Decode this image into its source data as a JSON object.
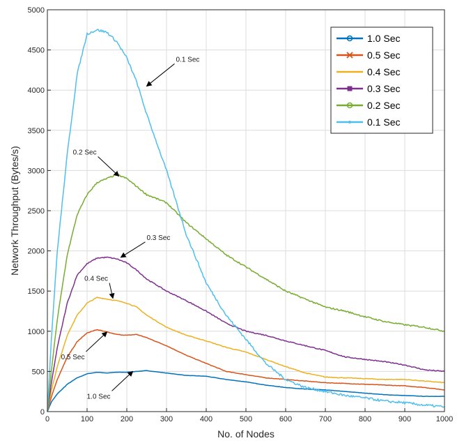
{
  "chart_data": {
    "type": "line",
    "xlabel": "No. of Nodes",
    "ylabel": "Network Throughput (Bytes/s)",
    "xlim": [
      0,
      1000
    ],
    "ylim": [
      0,
      5000
    ],
    "xticks": [
      0,
      100,
      200,
      300,
      400,
      500,
      600,
      700,
      800,
      900,
      1000
    ],
    "yticks": [
      0,
      500,
      1000,
      1500,
      2000,
      2500,
      3000,
      3500,
      4000,
      4500,
      5000
    ],
    "grid": true,
    "legend_position": "top-right",
    "x": [
      0,
      10,
      25,
      50,
      75,
      100,
      125,
      150,
      175,
      200,
      225,
      250,
      300,
      350,
      400,
      450,
      500,
      550,
      600,
      650,
      700,
      750,
      800,
      850,
      900,
      950,
      1000
    ],
    "series": [
      {
        "name": "1.0 Sec",
        "color": "#0072bd",
        "marker": "circle",
        "values": [
          0,
          120,
          220,
          340,
          420,
          470,
          490,
          480,
          490,
          490,
          500,
          510,
          480,
          450,
          440,
          400,
          370,
          330,
          300,
          280,
          270,
          250,
          230,
          210,
          200,
          190,
          190
        ]
      },
      {
        "name": "0.5 Sec",
        "color": "#d95319",
        "marker": "x",
        "values": [
          0,
          180,
          400,
          680,
          870,
          980,
          1020,
          990,
          960,
          950,
          960,
          920,
          820,
          700,
          600,
          500,
          460,
          420,
          400,
          380,
          360,
          350,
          340,
          330,
          320,
          300,
          270
        ]
      },
      {
        "name": "0.4 Sec",
        "color": "#edb120",
        "marker": "none",
        "values": [
          0,
          260,
          560,
          950,
          1200,
          1350,
          1420,
          1400,
          1380,
          1350,
          1300,
          1200,
          1050,
          950,
          880,
          800,
          740,
          650,
          560,
          480,
          430,
          420,
          410,
          400,
          400,
          380,
          360
        ]
      },
      {
        "name": "0.3 Sec",
        "color": "#7e2f8e",
        "marker": "square",
        "values": [
          0,
          350,
          800,
          1350,
          1700,
          1840,
          1910,
          1920,
          1900,
          1850,
          1760,
          1650,
          1500,
          1380,
          1250,
          1100,
          1000,
          950,
          880,
          820,
          760,
          680,
          650,
          620,
          580,
          520,
          500
        ]
      },
      {
        "name": "0.2 Sec",
        "color": "#77ac30",
        "marker": "circle",
        "values": [
          0,
          500,
          1150,
          1950,
          2450,
          2700,
          2850,
          2900,
          2950,
          2900,
          2800,
          2700,
          2600,
          2350,
          2150,
          1950,
          1800,
          1650,
          1500,
          1400,
          1300,
          1250,
          1180,
          1120,
          1080,
          1050,
          1000
        ]
      },
      {
        "name": "0.1 Sec",
        "color": "#4dbeee",
        "marker": "dot",
        "values": [
          0,
          900,
          2000,
          3200,
          4200,
          4700,
          4750,
          4720,
          4600,
          4400,
          4100,
          3700,
          3000,
          2200,
          1600,
          1200,
          900,
          600,
          400,
          300,
          250,
          200,
          170,
          130,
          110,
          80,
          60
        ]
      }
    ],
    "annotations": [
      {
        "text": "0.1 Sec",
        "x": 250,
        "y": 4050
      },
      {
        "text": "0.2 Sec",
        "x": 180,
        "y": 2930
      },
      {
        "text": "0.3 Sec",
        "x": 185,
        "y": 1920
      },
      {
        "text": "0.4 Sec",
        "x": 165,
        "y": 1410
      },
      {
        "text": "0.5 Sec",
        "x": 150,
        "y": 990
      },
      {
        "text": "1.0 Sec",
        "x": 215,
        "y": 500
      }
    ]
  }
}
